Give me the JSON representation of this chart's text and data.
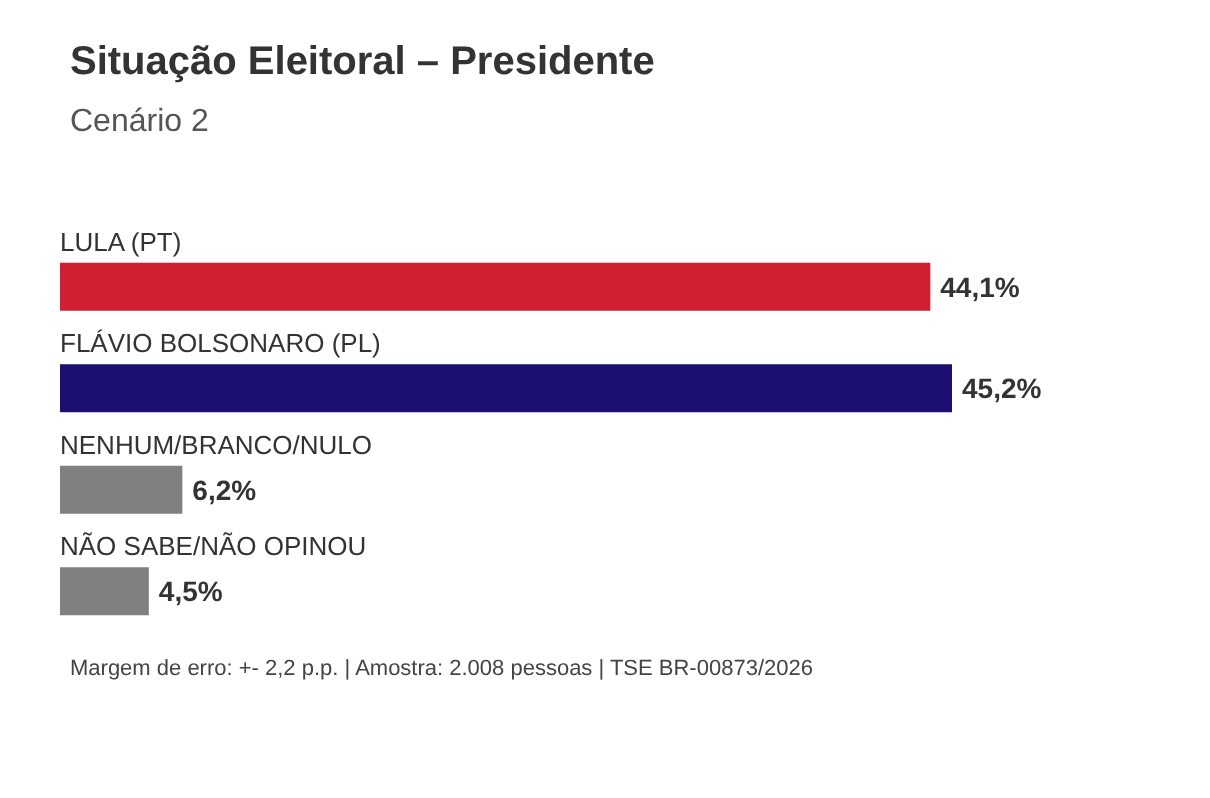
{
  "chart_data": {
    "type": "bar",
    "orientation": "horizontal",
    "title": "Situação Eleitoral – Presidente",
    "subtitle": "Cenário 2",
    "categories": [
      "LULA (PT)",
      "FLÁVIO BOLSONARO (PL)",
      "NENHUM/BRANCO/NULO",
      "NÃO SABE/NÃO OPINOU"
    ],
    "values": [
      44.1,
      45.2,
      6.2,
      4.5
    ],
    "colors": [
      "#d01f2e",
      "#1b0f72",
      "#808080",
      "#808080"
    ],
    "value_labels": [
      "44,1%",
      "45,2%",
      "6,2%",
      "4,5%"
    ],
    "annotations": [
      "Margem de erro: +- 2,2 p.p. | Amostra: 2.008 pessoas | TSE BR-00873/2026"
    ],
    "grid": false
  }
}
